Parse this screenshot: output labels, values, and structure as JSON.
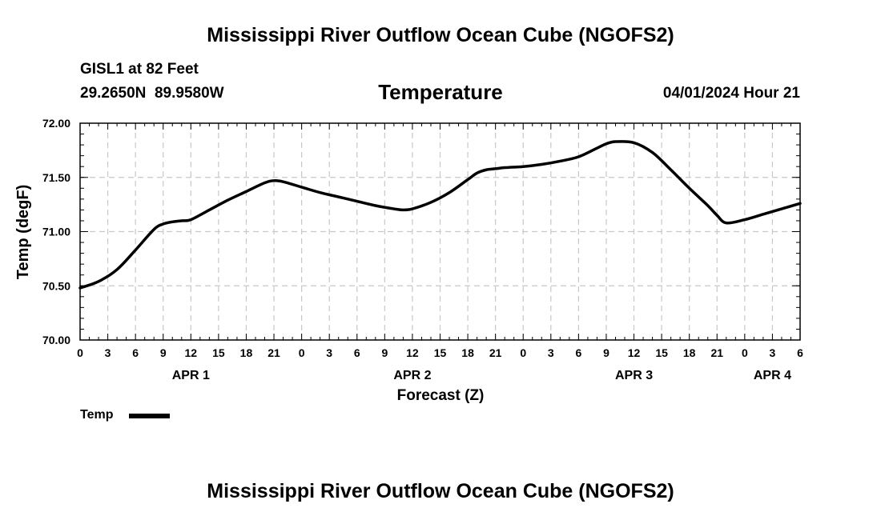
{
  "header": {
    "title": "Mississippi River Outflow Ocean Cube (NGOFS2)",
    "station": "GISL1 at 82 Feet",
    "coords": "29.2650N  89.9580W",
    "variable": "Temperature",
    "datetime": "04/01/2024 Hour 21"
  },
  "footer": {
    "title": "Mississippi River Outflow Ocean Cube (NGOFS2)"
  },
  "legend": {
    "label": "Temp"
  },
  "chart_data": {
    "type": "line",
    "title": "Temperature",
    "xlabel": "Forecast (Z)",
    "ylabel": "Temp (degF)",
    "ylim": [
      70.0,
      72.0
    ],
    "xlim": [
      0,
      78
    ],
    "yticks": [
      70.0,
      70.5,
      71.0,
      71.5,
      72.0
    ],
    "ytick_labels": [
      "70.00",
      "70.50",
      "71.00",
      "71.50",
      "72.00"
    ],
    "xticks": [
      0,
      3,
      6,
      9,
      12,
      15,
      18,
      21,
      24,
      27,
      30,
      33,
      36,
      39,
      42,
      45,
      48,
      51,
      54,
      57,
      60,
      63,
      66,
      69,
      72,
      75,
      78
    ],
    "xtick_labels": [
      "0",
      "3",
      "6",
      "9",
      "12",
      "15",
      "18",
      "21",
      "0",
      "3",
      "6",
      "9",
      "12",
      "15",
      "18",
      "21",
      "0",
      "3",
      "6",
      "9",
      "12",
      "15",
      "18",
      "21",
      "0",
      "3",
      "6"
    ],
    "day_labels": [
      {
        "label": "APR 1",
        "x": 12
      },
      {
        "label": "APR 2",
        "x": 36
      },
      {
        "label": "APR 3",
        "x": 60
      },
      {
        "label": "APR 4",
        "x": 75
      }
    ],
    "grid": true,
    "series": [
      {
        "name": "Temp",
        "color": "#000000",
        "x": [
          0,
          2,
          4,
          6,
          8,
          9,
          10,
          11,
          12,
          14,
          16,
          18,
          20,
          21,
          22,
          24,
          26,
          28,
          30,
          32,
          34,
          35,
          36,
          38,
          40,
          42,
          43,
          44,
          45,
          46,
          48,
          50,
          52,
          54,
          56,
          57,
          58,
          60,
          62,
          64,
          66,
          68,
          69,
          70,
          72,
          74,
          76,
          78
        ],
        "values": [
          70.48,
          70.54,
          70.65,
          70.83,
          71.02,
          71.07,
          71.09,
          71.1,
          71.11,
          71.2,
          71.29,
          71.37,
          71.45,
          71.47,
          71.46,
          71.41,
          71.36,
          71.32,
          71.28,
          71.24,
          71.21,
          71.2,
          71.21,
          71.27,
          71.36,
          71.48,
          71.54,
          71.57,
          71.58,
          71.59,
          71.6,
          71.62,
          71.65,
          71.69,
          71.77,
          71.81,
          71.83,
          71.82,
          71.73,
          71.57,
          71.4,
          71.24,
          71.15,
          71.08,
          71.11,
          71.16,
          71.21,
          71.26
        ]
      }
    ]
  }
}
